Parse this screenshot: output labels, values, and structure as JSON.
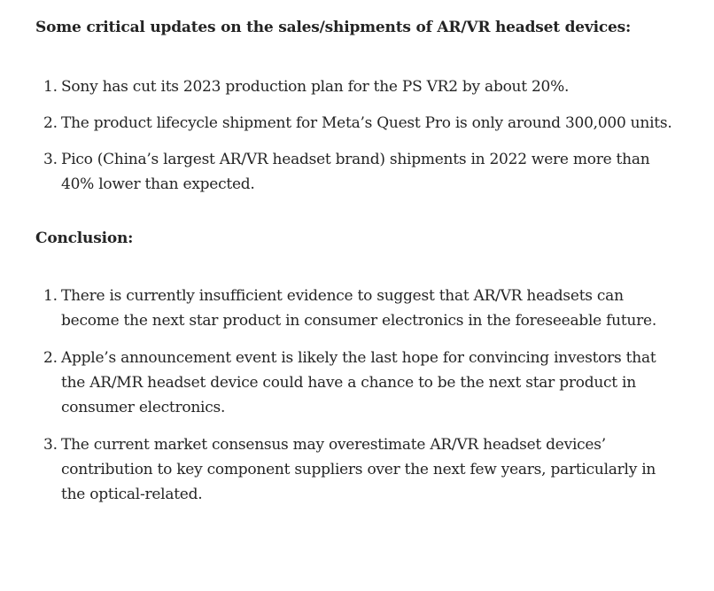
{
  "heading_updates": "Some critical updates on the sales/shipments of AR/VR headset devices:",
  "updates": [
    {
      "num": "1.",
      "text": "Sony has cut its 2023 production plan for the PS VR2 by about 20%."
    },
    {
      "num": "2.",
      "text": "The product lifecycle shipment for Meta’s Quest Pro is only around 300,000 units."
    },
    {
      "num": "3.",
      "text": "Pico (China’s largest AR/VR headset brand) shipments in 2022 were more than 40% lower than expected."
    }
  ],
  "heading_conclusion": "Conclusion:",
  "conclusions": [
    {
      "num": "1.",
      "text": "There is currently insufficient evidence to suggest that AR/VR headsets can become the next star product in consumer electronics in the foreseeable future."
    },
    {
      "num": "2.",
      "text": "Apple’s announcement event is likely the last hope for convincing investors that the AR/MR headset device could have a chance to be the next star product in consumer electronics."
    },
    {
      "num": "3.",
      "text": "The current market consensus may overestimate AR/VR headset devices’ contribution to key component suppliers over the next few years, particularly in the optical-related."
    }
  ]
}
